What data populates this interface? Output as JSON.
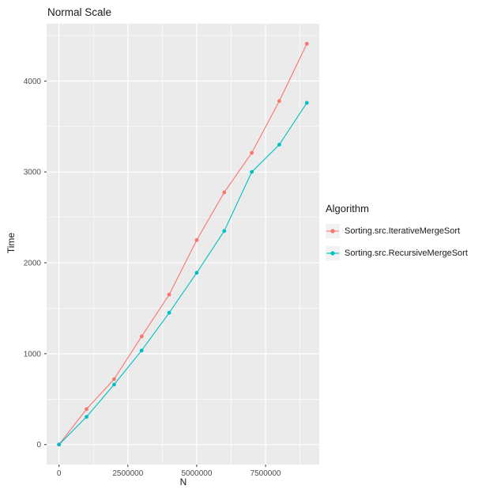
{
  "chart_data": {
    "type": "line",
    "title": "Normal Scale",
    "xlabel": "N",
    "ylabel": "Time",
    "x": [
      0,
      1000000,
      2000000,
      3000000,
      4000000,
      5000000,
      6000000,
      7000000,
      8000000,
      9000000
    ],
    "series": [
      {
        "name": "Sorting.src.IterativeMergeSort",
        "color": "#F8766D",
        "values": [
          0,
          390,
          720,
          1190,
          1650,
          2250,
          2775,
          3210,
          3780,
          4410
        ]
      },
      {
        "name": "Sorting.src.RecursiveMergeSort",
        "color": "#00BFC4",
        "values": [
          0,
          305,
          660,
          1035,
          1450,
          1890,
          2350,
          3000,
          3300,
          3760
        ]
      }
    ],
    "x_ticks": {
      "values": [
        0,
        2500000,
        5000000,
        7500000
      ],
      "labels": [
        "0",
        "2500000",
        "5000000",
        "7500000"
      ]
    },
    "y_ticks": {
      "values": [
        0,
        1000,
        2000,
        3000,
        4000
      ],
      "labels": [
        "0",
        "1000",
        "2000",
        "3000",
        "4000"
      ]
    },
    "x_minor": [
      1250000,
      3750000,
      6250000,
      8750000
    ],
    "y_minor": [
      500,
      1500,
      2500,
      3500,
      4500
    ],
    "xlim": [
      -450000,
      9450000
    ],
    "ylim": [
      -220.5,
      4630.5
    ],
    "legend": {
      "title": "Algorithm",
      "position": "right"
    },
    "colors": {
      "panel_bg": "#EBEBEB",
      "grid": "#FFFFFF",
      "tick": "#333333",
      "tick_label": "#4D4D4D"
    }
  }
}
